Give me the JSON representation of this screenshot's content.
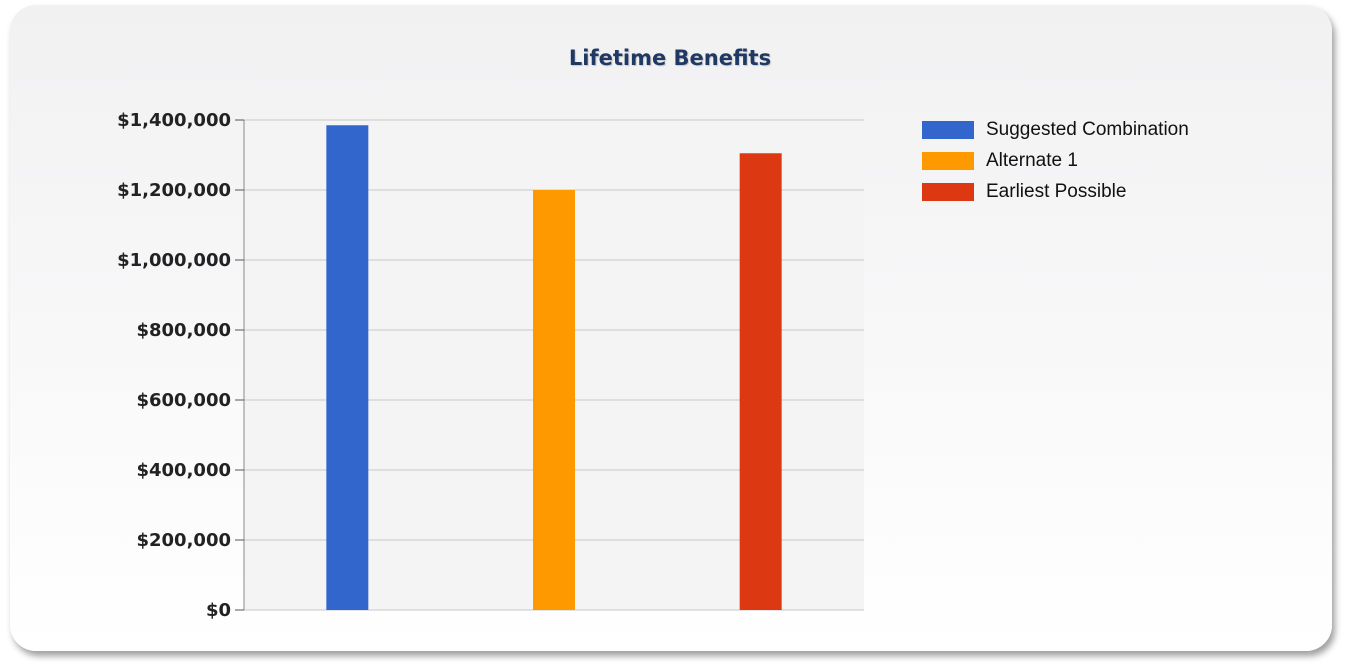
{
  "chart_data": {
    "type": "bar",
    "title": "Lifetime Benefits",
    "xlabel": "",
    "ylabel": "",
    "ylim": [
      0,
      1400000
    ],
    "yticks": [
      0,
      200000,
      400000,
      600000,
      800000,
      1000000,
      1200000,
      1400000
    ],
    "ytick_labels": [
      "$0",
      "$200,000",
      "$400,000",
      "$600,000",
      "$800,000",
      "$1,000,000",
      "$1,200,000",
      "$1,400,000"
    ],
    "grid": true,
    "legend_position": "top-right",
    "series": [
      {
        "name": "Suggested Combination",
        "value": 1385000,
        "color": "#3366cc"
      },
      {
        "name": "Alternate 1",
        "value": 1200000,
        "color": "#ff9900"
      },
      {
        "name": "Earliest Possible",
        "value": 1305000,
        "color": "#dc3912"
      }
    ]
  }
}
